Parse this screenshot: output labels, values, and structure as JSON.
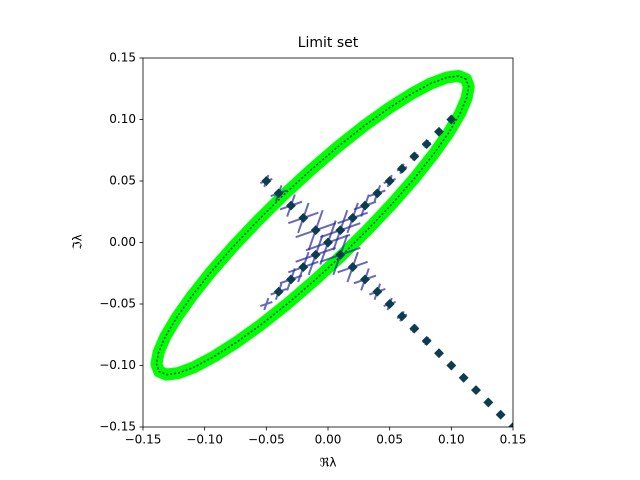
{
  "chart_data": {
    "type": "scatter",
    "title": "Limit set",
    "xlabel": "ℜλ",
    "ylabel": "ℑλ",
    "xlim": [
      -0.15,
      0.15
    ],
    "ylim": [
      -0.15,
      0.15
    ],
    "xticks": [
      {
        "value": -0.15,
        "label": "−0.15"
      },
      {
        "value": -0.1,
        "label": "−0.10"
      },
      {
        "value": -0.05,
        "label": "−0.05"
      },
      {
        "value": 0,
        "label": "0.00"
      },
      {
        "value": 0.05,
        "label": "0.05"
      },
      {
        "value": 0.1,
        "label": "0.10"
      },
      {
        "value": 0.15,
        "label": "0.15"
      }
    ],
    "yticks": [
      {
        "value": -0.15,
        "label": "−0.15"
      },
      {
        "value": -0.1,
        "label": "−0.10"
      },
      {
        "value": -0.05,
        "label": "−0.05"
      },
      {
        "value": 0,
        "label": "0.00"
      },
      {
        "value": 0.05,
        "label": "0.05"
      },
      {
        "value": 0.1,
        "label": "0.10"
      },
      {
        "value": 0.15,
        "label": "0.15"
      }
    ],
    "grid": false,
    "series": [
      {
        "color": "#00ff00",
        "edge_color": "#1a3a5a",
        "marker": "band",
        "closed": true,
        "x": [
          0.1119,
          0.1059,
          0.0964,
          0.0834,
          0.0677,
          0.0495,
          0.0293,
          0.0079,
          -0.014,
          -0.036,
          -0.0572,
          -0.0771,
          -0.0951,
          -0.1105,
          -0.1229,
          -0.132,
          -0.1374,
          -0.1391,
          -0.1369,
          -0.1309,
          -0.1214,
          -0.1084,
          -0.0927,
          -0.0745,
          -0.0543,
          -0.0329,
          -0.011,
          0.011,
          0.0322,
          0.0521,
          0.0701,
          0.0855,
          0.0979,
          0.107,
          0.1124,
          0.1141
        ],
        "values": [
          0.1329,
          0.1354,
          0.1342,
          0.1293,
          0.1209,
          0.1093,
          0.0948,
          0.0778,
          0.0589,
          0.0386,
          0.0175,
          -0.0036,
          -0.0242,
          -0.0437,
          -0.0613,
          -0.0767,
          -0.0894,
          -0.0988,
          -0.1049,
          -0.1074,
          -0.1062,
          -0.1013,
          -0.0929,
          -0.0813,
          -0.0668,
          -0.0498,
          -0.0309,
          -0.0106,
          0.0105,
          0.0316,
          0.0522,
          0.0717,
          0.0893,
          0.1047,
          0.1174,
          0.1268
        ]
      },
      {
        "color": "#2a2aa0",
        "marker": "x",
        "opacity": 0.7,
        "x": [
          -0.05,
          -0.04,
          -0.03,
          -0.02,
          -0.01,
          0,
          0.01,
          0.02,
          0.03,
          0.04,
          0.05,
          0.06,
          0.07,
          0.08,
          0.09,
          0.1,
          0.11,
          0.12,
          0.13,
          0.14,
          0.15,
          -0.05,
          -0.04,
          -0.03,
          -0.02,
          -0.01,
          0.01,
          0.02,
          0.03,
          0.04,
          0.05,
          0.06,
          0.07,
          0.08,
          0.09,
          0.1
        ],
        "values": [
          0.05,
          0.04,
          0.03,
          0.02,
          0.01,
          0,
          -0.01,
          -0.02,
          -0.03,
          -0.04,
          -0.05,
          -0.06,
          -0.07,
          -0.08,
          -0.09,
          -0.1,
          -0.11,
          -0.12,
          -0.13,
          -0.14,
          -0.15,
          -0.05,
          -0.04,
          -0.03,
          -0.02,
          -0.01,
          0.01,
          0.02,
          0.03,
          0.04,
          0.05,
          0.06,
          0.07,
          0.08,
          0.09,
          0.1
        ],
        "marker_sizes": [
          6,
          8,
          11,
          15,
          20,
          22,
          20,
          15,
          11,
          8,
          6,
          5,
          4,
          4,
          3,
          3,
          3,
          3,
          3,
          3,
          3,
          6,
          8,
          11,
          15,
          20,
          20,
          15,
          11,
          8,
          6,
          5,
          4,
          4,
          3,
          3
        ]
      },
      {
        "color": "#0b3d4f",
        "marker": "square",
        "marker_size": 3.5,
        "x": [
          -0.05,
          -0.04,
          -0.03,
          -0.02,
          -0.01,
          0,
          0.01,
          0.02,
          0.03,
          0.04,
          0.05,
          0.06,
          0.07,
          0.08,
          0.09,
          0.1,
          0.11,
          0.12,
          0.13,
          0.14,
          0.15,
          -0.04,
          -0.03,
          -0.02,
          -0.01,
          0.01,
          0.02,
          0.03,
          0.04,
          0.05,
          0.06,
          0.07,
          0.08,
          0.09,
          0.1
        ],
        "values": [
          0.05,
          0.04,
          0.03,
          0.02,
          0.01,
          0,
          -0.01,
          -0.02,
          -0.03,
          -0.04,
          -0.05,
          -0.06,
          -0.07,
          -0.08,
          -0.09,
          -0.1,
          -0.11,
          -0.12,
          -0.13,
          -0.14,
          -0.15,
          -0.04,
          -0.03,
          -0.02,
          -0.01,
          0.01,
          0.02,
          0.03,
          0.04,
          0.05,
          0.06,
          0.07,
          0.08,
          0.09,
          0.1
        ]
      }
    ]
  }
}
